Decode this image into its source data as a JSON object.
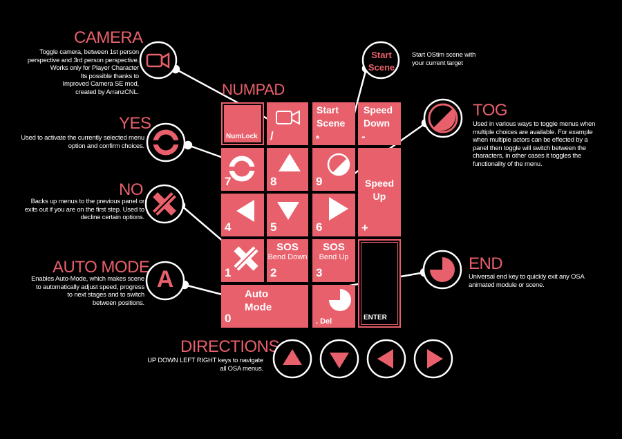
{
  "colors": {
    "accent": "#e8606b",
    "background": "#000000",
    "outline": "#ffffff"
  },
  "numpad_title": "NUMPAD",
  "keys": {
    "numlock": {
      "label": "NumLock"
    },
    "slash": {
      "num": "/",
      "icon": "camera-icon"
    },
    "star": {
      "label": "Start\nScene",
      "num": "*"
    },
    "minus": {
      "label": "Speed\nDown",
      "num": "-"
    },
    "k7": {
      "num": "7",
      "icon": "yes-ring-icon"
    },
    "k8": {
      "num": "8",
      "icon": "up-triangle-icon"
    },
    "k9": {
      "num": "9",
      "icon": "toggle-circle-icon"
    },
    "plus": {
      "label": "Speed\nUp",
      "num": "+"
    },
    "k4": {
      "num": "4",
      "icon": "left-triangle-icon"
    },
    "k5": {
      "num": "5",
      "icon": "down-triangle-icon"
    },
    "k6": {
      "num": "6",
      "icon": "right-triangle-icon"
    },
    "k1": {
      "num": "1",
      "icon": "no-x-icon"
    },
    "k2": {
      "num": "2",
      "label": "SOS",
      "sub": "Bend Down"
    },
    "k3": {
      "num": "3",
      "label": "SOS",
      "sub": "Bend Up"
    },
    "k0": {
      "num": "0",
      "label": "Auto\nMode"
    },
    "del": {
      "num": ". Del",
      "icon": "end-pac-icon"
    },
    "enter": {
      "label": "ENTER"
    }
  },
  "callouts": {
    "camera": {
      "title": "CAMERA",
      "desc": "Toggle camera, between 1st person\nperspective and 3rd person perspective.\nWorks only for Player Character\nIts possible thanks to\nImproved Camera SE mod,\ncreated by ArranzCNL."
    },
    "start": {
      "icon_label": "Start\nScene",
      "desc": "Start OStim scene with\nyour current target"
    },
    "tog": {
      "title": "TOG",
      "desc": "Used in various ways to toggle menus when\nmultiple choices are available. For example\nwhen multiple actors can be effected by a\npanel then toggle will switch between the\ncharacters, in other cases it toggles the\nfunctionality of the menu."
    },
    "yes": {
      "title": "YES",
      "desc": "Used to activate the currently selected menu\noption and confirm choices."
    },
    "no": {
      "title": "NO",
      "desc": "Backs up menus to the previous panel or\nexits out if you are on the first step. Used to\ndecline certain options."
    },
    "auto": {
      "title": "AUTO MODE",
      "icon_label": "A",
      "desc": "Enables Auto-Mode, which makes scene\nto automatically adjust speed, progress\nto next stages and to switch\nbetween positions."
    },
    "end": {
      "title": "END",
      "desc": "Universal end key to quickly exit any OSA\nanimated module or scene."
    },
    "directions": {
      "title": "DIRECTIONS",
      "desc": "UP DOWN LEFT RIGHT keys to navigate\nall  OSA menus."
    }
  }
}
